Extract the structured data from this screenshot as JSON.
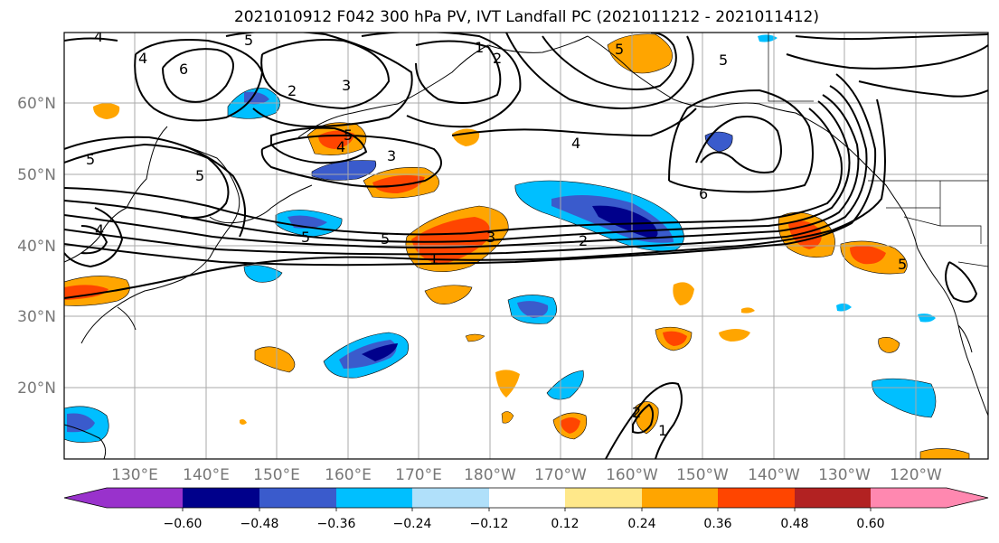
{
  "title": "2021010912 F042 300 hPa PV, IVT Landfall PC (2021011212 - 2021011412)",
  "map": {
    "lat_labels": [
      "60°N",
      "50°N",
      "40°N",
      "30°N",
      "20°N"
    ],
    "lon_labels": [
      "130°E",
      "140°E",
      "150°E",
      "160°E",
      "170°E",
      "180°W",
      "170°W",
      "160°W",
      "150°W",
      "140°W",
      "130°W",
      "120°W"
    ],
    "pv_contour_labels": [
      "4",
      "4",
      "6",
      "5",
      "2",
      "3",
      "5",
      "1",
      "2",
      "5",
      "5",
      "4",
      "3",
      "5",
      "5",
      "5",
      "5",
      "4",
      "3",
      "2",
      "6",
      "5",
      "4",
      "1",
      "2",
      "1"
    ]
  },
  "colorbar": {
    "ticks": [
      "−0.60",
      "−0.48",
      "−0.36",
      "−0.24",
      "−0.12",
      "0.12",
      "0.24",
      "0.36",
      "0.48",
      "0.60"
    ],
    "colors": {
      "lt_neg_060": "#9932cc",
      "neg_060_048": "#00008b",
      "neg_048_036": "#3a5bcc",
      "neg_036_024": "#00bfff",
      "neg_024_012": "#b0e0fa",
      "neutral": "#ffffff",
      "pos_012_024": "#ffe88a",
      "pos_024_036": "#ffa500",
      "pos_036_048": "#ff4500",
      "pos_048_060": "#b22222",
      "gt_060": "#ff88b0"
    }
  }
}
